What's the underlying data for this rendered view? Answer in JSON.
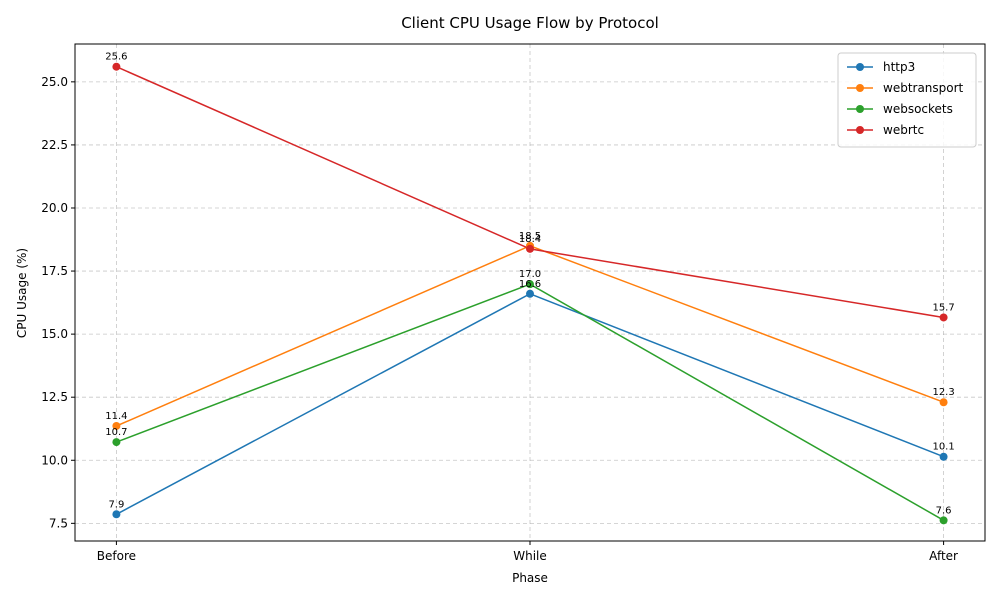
{
  "chart_data": {
    "type": "line",
    "title": "Client CPU Usage Flow by Protocol",
    "xlabel": "Phase",
    "ylabel": "CPU Usage (%)",
    "categories": [
      "Before",
      "While",
      "After"
    ],
    "ylim": [
      6.8,
      26.5
    ],
    "yticks": [
      7.5,
      10.0,
      12.5,
      15.0,
      17.5,
      20.0,
      22.5,
      25.0
    ],
    "ytick_labels": [
      "7.5",
      "10.0",
      "12.5",
      "15.0",
      "17.5",
      "20.0",
      "22.5",
      "25.0"
    ],
    "grid": true,
    "legend_position": "top-right",
    "series": [
      {
        "name": "http3",
        "color": "#1f77b4",
        "values": [
          7.86,
          16.6,
          10.14
        ],
        "labels": [
          "7.9",
          "16.6",
          "10.1"
        ]
      },
      {
        "name": "webtransport",
        "color": "#ff7f0e",
        "values": [
          11.36,
          18.5,
          12.3
        ],
        "labels": [
          "11.4",
          "18.5",
          "12.3"
        ]
      },
      {
        "name": "websockets",
        "color": "#2ca02c",
        "values": [
          10.72,
          16.98,
          7.62
        ],
        "labels": [
          "10.7",
          "17.0",
          "7.6"
        ]
      },
      {
        "name": "webrtc",
        "color": "#d62728",
        "values": [
          25.6,
          18.38,
          15.66
        ],
        "labels": [
          "25.6",
          "18.4",
          "15.7"
        ]
      }
    ]
  }
}
